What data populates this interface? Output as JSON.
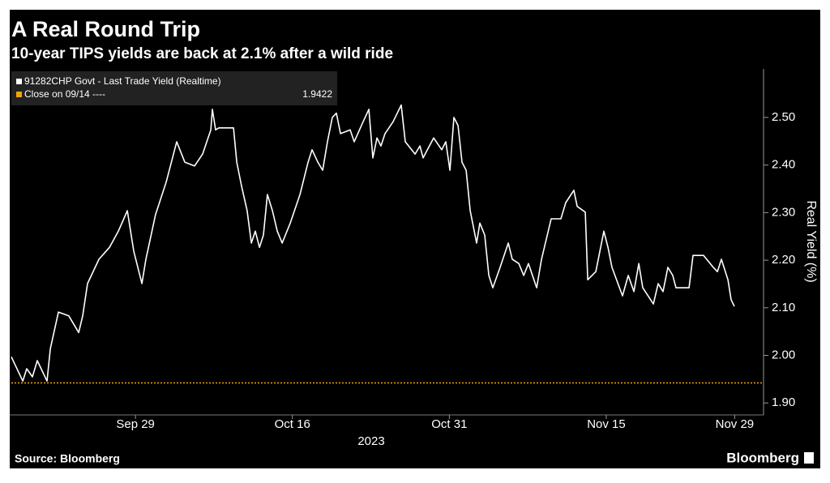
{
  "chart_data": {
    "type": "line",
    "title": "A Real Round Trip",
    "subtitle": "10-year TIPS yields are back at 2.1% after a wild ride",
    "y_axis_label": "Real Yield (%)",
    "x_axis_label": "2023",
    "source": "Source: Bloomberg",
    "brand": "Bloomberg",
    "x": [
      2.3,
      3.1,
      3.38,
      3.78,
      4.12,
      4.8,
      5.03,
      5.6,
      6.33,
      7.02,
      7.3,
      7.64,
      8.44,
      9.18,
      9.8,
      10.43,
      10.88,
      11.45,
      11.73,
      12.41,
      13.15,
      13.89,
      14.46,
      15.14,
      15.71,
      16.28,
      16.39,
      16.62,
      16.85,
      17.87,
      18.1,
      18.44,
      18.83,
      19.12,
      19.4,
      19.69,
      19.97,
      20.25,
      20.6,
      20.94,
      21.28,
      21.85,
      22.53,
      23.1,
      23.38,
      23.78,
      24.12,
      24.46,
      24.8,
      25.08,
      25.37,
      26.05,
      26.33,
      26.96,
      27.36,
      27.64,
      27.93,
      28.21,
      28.49,
      29.06,
      29.63,
      29.91,
      30.6,
      30.94,
      31.16,
      31.9,
      32.47,
      32.75,
      33.04,
      33.32,
      33.61,
      33.89,
      34.18,
      34.46,
      34.91,
      35.14,
      35.48,
      35.77,
      36.05,
      36.56,
      37.13,
      37.41,
      37.87,
      38.21,
      38.55,
      39.12,
      39.46,
      40.14,
      40.82,
      41.16,
      41.73,
      41.96,
      42.53,
      42.7,
      43.27,
      43.83,
      44.12,
      44.4,
      45.14,
      45.54,
      45.94,
      46.28,
      46.56,
      47.3,
      47.64,
      47.98,
      48.32,
      48.66,
      48.89,
      49.8,
      50.08,
      50.82,
      51.5,
      51.79,
      52.07,
      52.53,
      52.75,
      52.98
    ],
    "series": [
      {
        "name": "91282CHP Govt - Last Trade Yield (Realtime)",
        "color": "#ffffff",
        "values": [
          1.997,
          1.946,
          1.972,
          1.955,
          1.989,
          1.946,
          2.014,
          2.091,
          2.083,
          2.048,
          2.083,
          2.151,
          2.202,
          2.227,
          2.261,
          2.304,
          2.219,
          2.151,
          2.202,
          2.296,
          2.364,
          2.449,
          2.406,
          2.398,
          2.423,
          2.474,
          2.517,
          2.474,
          2.478,
          2.478,
          2.406,
          2.355,
          2.304,
          2.236,
          2.261,
          2.227,
          2.253,
          2.338,
          2.304,
          2.261,
          2.236,
          2.278,
          2.338,
          2.406,
          2.432,
          2.406,
          2.389,
          2.449,
          2.5,
          2.509,
          2.466,
          2.474,
          2.449,
          2.491,
          2.517,
          2.415,
          2.457,
          2.44,
          2.466,
          2.491,
          2.526,
          2.449,
          2.423,
          2.44,
          2.415,
          2.457,
          2.432,
          2.449,
          2.389,
          2.5,
          2.483,
          2.406,
          2.389,
          2.304,
          2.236,
          2.278,
          2.253,
          2.168,
          2.142,
          2.185,
          2.236,
          2.202,
          2.193,
          2.168,
          2.193,
          2.142,
          2.202,
          2.287,
          2.287,
          2.321,
          2.347,
          2.313,
          2.301,
          2.159,
          2.176,
          2.261,
          2.227,
          2.185,
          2.125,
          2.168,
          2.134,
          2.193,
          2.142,
          2.108,
          2.151,
          2.134,
          2.185,
          2.168,
          2.142,
          2.142,
          2.21,
          2.21,
          2.185,
          2.176,
          2.202,
          2.159,
          2.117,
          2.103
        ]
      }
    ],
    "reference_line": {
      "name": "Close on 09/14 ----",
      "value": 1.9422,
      "color": "#f0a30a"
    },
    "xlim": [
      2.3,
      54.91
    ],
    "xticks": [
      {
        "value": 11,
        "label": "Sep 29"
      },
      {
        "value": 22,
        "label": "Oct 16"
      },
      {
        "value": 33,
        "label": "Oct 31"
      },
      {
        "value": 44,
        "label": "Nov 15"
      },
      {
        "value": 53,
        "label": "Nov 29"
      }
    ],
    "ylim": [
      1.88,
      2.602
    ],
    "yticks": [
      {
        "value": 1.9,
        "label": "1.90"
      },
      {
        "value": 2.0,
        "label": "2.00"
      },
      {
        "value": 2.1,
        "label": "2.10"
      },
      {
        "value": 2.2,
        "label": "2.20"
      },
      {
        "value": 2.3,
        "label": "2.30"
      },
      {
        "value": 2.4,
        "label": "2.40"
      },
      {
        "value": 2.5,
        "label": "2.50"
      }
    ]
  }
}
